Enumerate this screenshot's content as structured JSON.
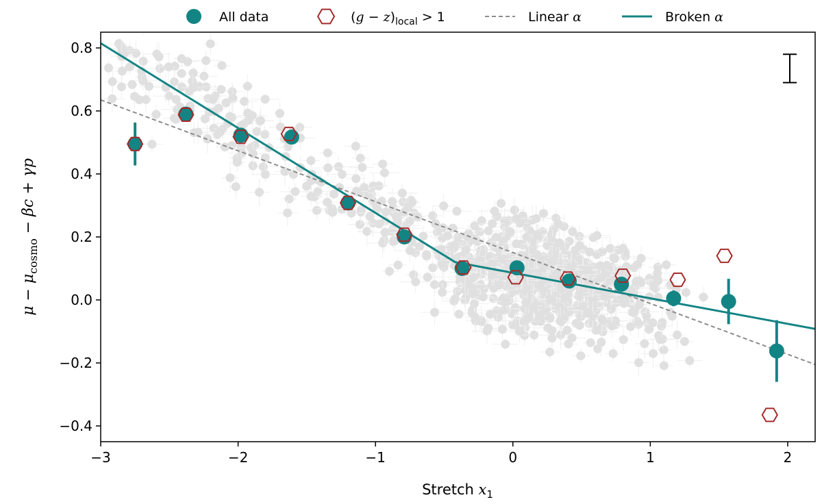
{
  "chart_data": {
    "type": "scatter",
    "title": "",
    "xlabel": "Stretch x₁",
    "ylabel": "μ − μcosmo − βc + γp",
    "xlim": [
      -3,
      2.2
    ],
    "ylim": [
      -0.45,
      0.85
    ],
    "xticks": [
      -3,
      -2,
      -1,
      0,
      1,
      2
    ],
    "xtick_labels": [
      "−3",
      "−2",
      "−1",
      "0",
      "1",
      "2"
    ],
    "yticks": [
      -0.4,
      -0.2,
      0.0,
      0.2,
      0.4,
      0.6,
      0.8
    ],
    "ytick_labels": [
      "−0.4",
      "−0.2",
      "0.0",
      "0.2",
      "0.4",
      "0.6",
      "0.8"
    ],
    "grid": false,
    "legend_position": "top-outside",
    "colors": {
      "teal": "#138484",
      "red": "#a52a2a",
      "gray_dash": "#8c8c8c",
      "background_points": "#e0e0e0"
    },
    "legend": [
      {
        "key": "all",
        "label": "All data"
      },
      {
        "key": "local",
        "label": "(g − z)local > 1"
      },
      {
        "key": "linear",
        "label": "Linear α"
      },
      {
        "key": "broken",
        "label": "Broken α"
      }
    ],
    "series": [
      {
        "name": "All data",
        "marker": "circle",
        "x": [
          -2.75,
          -2.38,
          -1.98,
          -1.61,
          -1.2,
          -0.79,
          -0.37,
          0.03,
          0.41,
          0.79,
          1.17,
          1.57,
          1.92
        ],
        "y": [
          0.495,
          0.59,
          0.523,
          0.517,
          0.308,
          0.2,
          0.1,
          0.102,
          0.06,
          0.05,
          0.005,
          -0.005,
          -0.162
        ],
        "yerr": [
          0.068,
          0.018,
          0.02,
          0.022,
          0.02,
          0.02,
          0.02,
          0.018,
          0.02,
          0.022,
          0.025,
          0.072,
          0.098
        ]
      },
      {
        "name": "(g − z)local > 1",
        "marker": "hexagon",
        "x": [
          -2.75,
          -2.38,
          -1.98,
          -1.63,
          -1.2,
          -0.79,
          -0.36,
          0.02,
          0.4,
          0.8,
          1.2,
          1.54,
          1.87
        ],
        "y": [
          0.495,
          0.588,
          0.518,
          0.527,
          0.308,
          0.207,
          0.103,
          0.072,
          0.068,
          0.077,
          0.064,
          0.14,
          -0.365
        ]
      },
      {
        "name": "Linear α",
        "style": "dashed",
        "x": [
          -3,
          2.2
        ],
        "y": [
          0.635,
          -0.205
        ]
      },
      {
        "name": "Broken α",
        "style": "solid",
        "x": [
          -3,
          -0.42,
          2.2
        ],
        "y": [
          0.815,
          0.12,
          -0.092
        ]
      }
    ],
    "annotations": [
      {
        "type": "error-bar-scale",
        "position": "top-right",
        "y_center": 0.735,
        "half_length": 0.045
      }
    ]
  }
}
